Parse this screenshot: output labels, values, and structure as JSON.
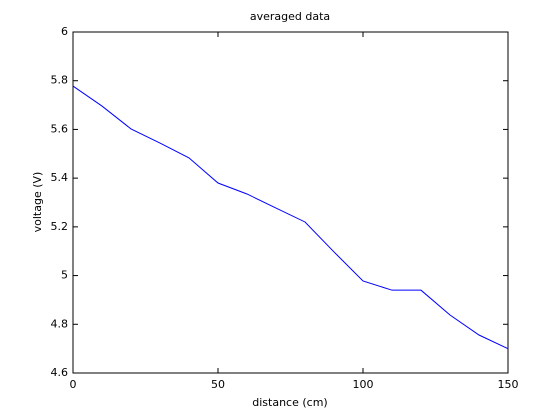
{
  "chart_data": {
    "type": "line",
    "title": "averaged data",
    "x_label": "distance (cm)",
    "y_label": "voltage (V)",
    "x": [
      0,
      10,
      20,
      30,
      40,
      50,
      60,
      70,
      80,
      90,
      100,
      110,
      120,
      130,
      140,
      150
    ],
    "values": [
      5.778,
      5.696,
      5.602,
      5.544,
      5.483,
      5.38,
      5.335,
      5.277,
      5.22,
      5.097,
      4.978,
      4.94,
      4.94,
      4.838,
      4.756,
      4.7
    ],
    "color": "#0000ff",
    "xlim": [
      0,
      150
    ],
    "xticks": [
      0,
      50,
      100,
      150
    ],
    "ylim": [
      4.6,
      6
    ],
    "yticks": [
      4.6,
      4.8,
      5,
      5.2,
      5.4,
      5.6,
      5.8,
      6
    ],
    "grid": false
  }
}
